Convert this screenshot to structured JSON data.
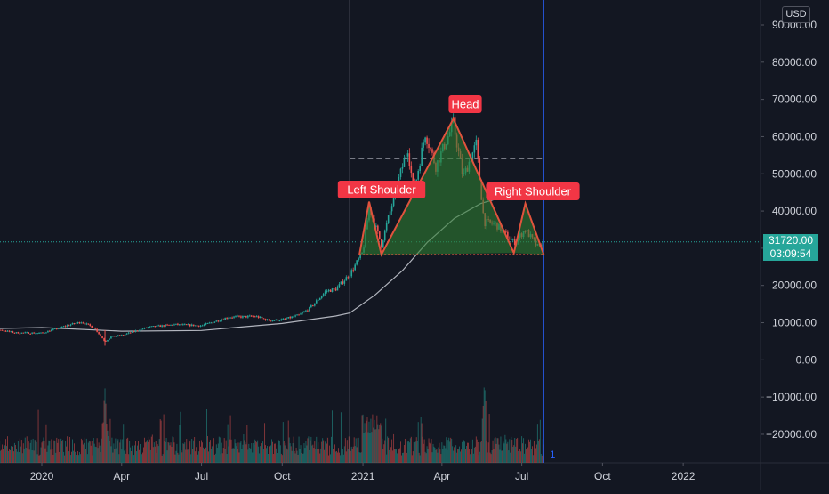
{
  "chart_data": {
    "type": "candlestick",
    "currency": "USD",
    "x_ticks": [
      "2020",
      "Apr",
      "Jul",
      "Oct",
      "2021",
      "Apr",
      "Jul",
      "Oct",
      "2022"
    ],
    "y_ticks": [
      "90000.00",
      "80000.00",
      "70000.00",
      "60000.00",
      "50000.00",
      "40000.00",
      "30000.00",
      "20000.00",
      "10000.00",
      "0.00",
      "−10000.00",
      "−20000.00"
    ],
    "ylim": [
      -27000,
      96000
    ],
    "last_price": "31720.00",
    "countdown": "03:09:54",
    "pattern_labels": {
      "left_shoulder": "Left Shoulder",
      "head": "Head",
      "right_shoulder": "Right Shoulder"
    },
    "pattern_points": [
      {
        "date": "2020-12-28",
        "price": 28300
      },
      {
        "date": "2021-01-08",
        "price": 42500
      },
      {
        "date": "2021-01-22",
        "price": 28300
      },
      {
        "date": "2021-04-14",
        "price": 64800
      },
      {
        "date": "2021-06-22",
        "price": 28700
      },
      {
        "date": "2021-07-05",
        "price": 42000
      },
      {
        "date": "2021-07-26",
        "price": 28300
      }
    ],
    "neckline_price": 28300,
    "resistance_price": 54000,
    "resistance_from": "2020-12-17",
    "price_series": [
      [
        "2019-10-01",
        8300
      ],
      [
        "2019-11-01",
        8700
      ],
      [
        "2019-12-01",
        7300
      ],
      [
        "2020-01-01",
        7200
      ],
      [
        "2020-02-01",
        9400
      ],
      [
        "2020-02-15",
        10200
      ],
      [
        "2020-03-01",
        8600
      ],
      [
        "2020-03-13",
        4900
      ],
      [
        "2020-03-20",
        6200
      ],
      [
        "2020-04-01",
        6600
      ],
      [
        "2020-05-01",
        8800
      ],
      [
        "2020-06-01",
        9500
      ],
      [
        "2020-07-01",
        9200
      ],
      [
        "2020-08-01",
        11500
      ],
      [
        "2020-09-01",
        11700
      ],
      [
        "2020-09-15",
        10600
      ],
      [
        "2020-10-01",
        10800
      ],
      [
        "2020-10-20",
        12000
      ],
      [
        "2020-11-01",
        13800
      ],
      [
        "2020-11-20",
        18500
      ],
      [
        "2020-12-01",
        19000
      ],
      [
        "2020-12-17",
        23000
      ],
      [
        "2021-01-01",
        29000
      ],
      [
        "2021-01-08",
        41000
      ],
      [
        "2021-01-22",
        31000
      ],
      [
        "2021-02-08",
        46000
      ],
      [
        "2021-02-21",
        57000
      ],
      [
        "2021-02-28",
        45000
      ],
      [
        "2021-03-13",
        61000
      ],
      [
        "2021-03-25",
        52000
      ],
      [
        "2021-04-14",
        63500
      ],
      [
        "2021-04-25",
        49000
      ],
      [
        "2021-05-10",
        58000
      ],
      [
        "2021-05-19",
        37000
      ],
      [
        "2021-06-01",
        36500
      ],
      [
        "2021-06-22",
        31500
      ],
      [
        "2021-07-05",
        35000
      ],
      [
        "2021-07-20",
        30000
      ],
      [
        "2021-07-26",
        31720
      ]
    ],
    "moving_average": [
      [
        "2019-10-01",
        8200
      ],
      [
        "2020-01-01",
        8700
      ],
      [
        "2020-04-01",
        7700
      ],
      [
        "2020-07-01",
        7900
      ],
      [
        "2020-10-01",
        9800
      ],
      [
        "2020-12-01",
        11800
      ],
      [
        "2020-12-17",
        12600
      ],
      [
        "2021-01-15",
        17500
      ],
      [
        "2021-02-15",
        24000
      ],
      [
        "2021-03-15",
        31500
      ],
      [
        "2021-04-15",
        38000
      ],
      [
        "2021-05-15",
        42000
      ],
      [
        "2021-06-10",
        43800
      ]
    ],
    "volume_labels_shown": false,
    "vertical_markers": [
      "2020-12-17",
      "2021-07-26"
    ],
    "pane_marker": "1",
    "colors": {
      "background": "#131722",
      "up": "#26a69a",
      "down": "#ef5350",
      "ma": "#b2b5be",
      "pattern_fill": "#2e7d32",
      "pattern_line": "#e0533d",
      "label_bg": "#f23645",
      "marker_line": "#2962ff",
      "grid_text": "#d1d4dc"
    }
  }
}
